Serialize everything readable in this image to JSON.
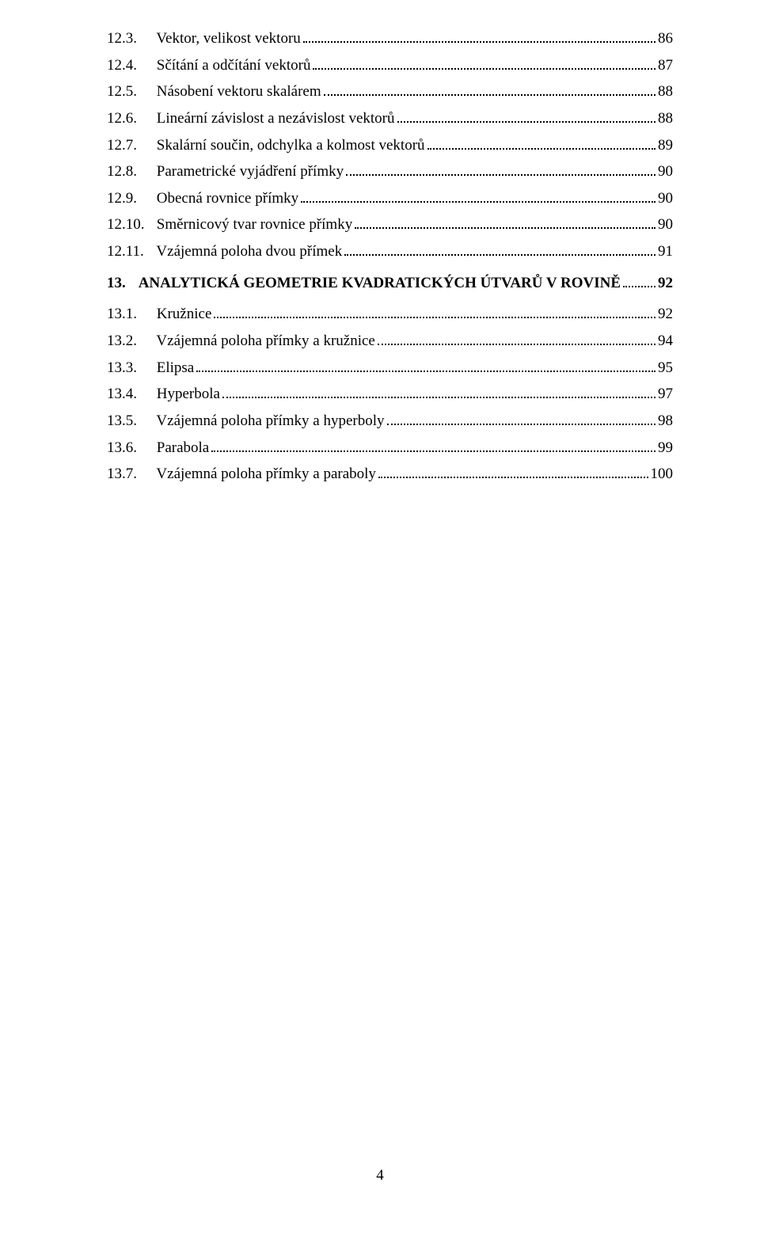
{
  "entries": [
    {
      "level": 2,
      "num": "12.3.",
      "title": "Vektor, velikost vektoru",
      "page": "86"
    },
    {
      "level": 2,
      "num": "12.4.",
      "title": "Sčítání a odčítání vektorů",
      "page": "87"
    },
    {
      "level": 2,
      "num": "12.5.",
      "title": "Násobení vektoru skalárem",
      "page": "88"
    },
    {
      "level": 2,
      "num": "12.6.",
      "title": "Lineární závislost a nezávislost vektorů",
      "page": "88"
    },
    {
      "level": 2,
      "num": "12.7.",
      "title": "Skalární součin, odchylka a kolmost vektorů",
      "page": "89"
    },
    {
      "level": 2,
      "num": "12.8.",
      "title": "Parametrické vyjádření přímky",
      "page": "90"
    },
    {
      "level": 2,
      "num": "12.9.",
      "title": "Obecná rovnice přímky",
      "page": "90"
    },
    {
      "level": 2,
      "num": "12.10.",
      "title": "Směrnicový tvar rovnice přímky",
      "page": "90"
    },
    {
      "level": 2,
      "num": "12.11.",
      "title": "Vzájemná poloha dvou přímek",
      "page": "91"
    },
    {
      "level": 1,
      "num": "13.",
      "title": "ANALYTICKÁ GEOMETRIE KVADRATICKÝCH ÚTVARŮ V ROVINĚ",
      "page": "92"
    },
    {
      "level": 2,
      "num": "13.1.",
      "title": "Kružnice",
      "page": "92"
    },
    {
      "level": 2,
      "num": "13.2.",
      "title": "Vzájemná poloha přímky a kružnice",
      "page": "94"
    },
    {
      "level": 2,
      "num": "13.3.",
      "title": "Elipsa",
      "page": "95"
    },
    {
      "level": 2,
      "num": "13.4.",
      "title": "Hyperbola",
      "page": "97"
    },
    {
      "level": 2,
      "num": "13.5.",
      "title": "Vzájemná poloha přímky a hyperboly",
      "page": "98"
    },
    {
      "level": 2,
      "num": "13.6.",
      "title": "Parabola",
      "page": "99"
    },
    {
      "level": 2,
      "num": "13.7.",
      "title": "Vzájemná poloha přímky a paraboly",
      "page": "100"
    }
  ],
  "pageNumber": "4"
}
